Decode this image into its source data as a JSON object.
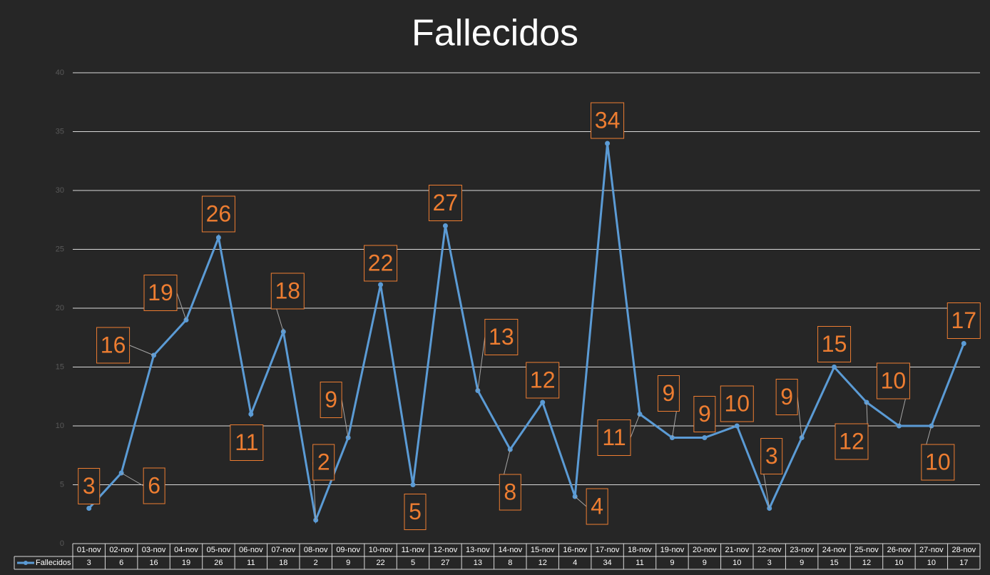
{
  "chart_data": {
    "type": "line",
    "title": "Fallecidos",
    "categories": [
      "01-nov",
      "02-nov",
      "03-nov",
      "04-nov",
      "05-nov",
      "06-nov",
      "07-nov",
      "08-nov",
      "09-nov",
      "10-nov",
      "11-nov",
      "12-nov",
      "13-nov",
      "14-nov",
      "15-nov",
      "16-nov",
      "17-nov",
      "18-nov",
      "19-nov",
      "20-nov",
      "21-nov",
      "22-nov",
      "23-nov",
      "24-nov",
      "25-nov",
      "26-nov",
      "27-nov",
      "28-nov"
    ],
    "series": [
      {
        "name": "Fallecidos",
        "color": "#5b9bd5",
        "values": [
          3,
          6,
          16,
          19,
          26,
          11,
          18,
          2,
          9,
          22,
          5,
          27,
          13,
          8,
          12,
          4,
          34,
          11,
          9,
          9,
          10,
          3,
          9,
          15,
          12,
          10,
          10,
          17
        ]
      }
    ],
    "ylim": [
      0,
      40
    ],
    "yticks": [
      0,
      5,
      10,
      15,
      20,
      25,
      30,
      35,
      40
    ],
    "grid": true,
    "data_table": true,
    "label_color": "#ed7d31"
  }
}
